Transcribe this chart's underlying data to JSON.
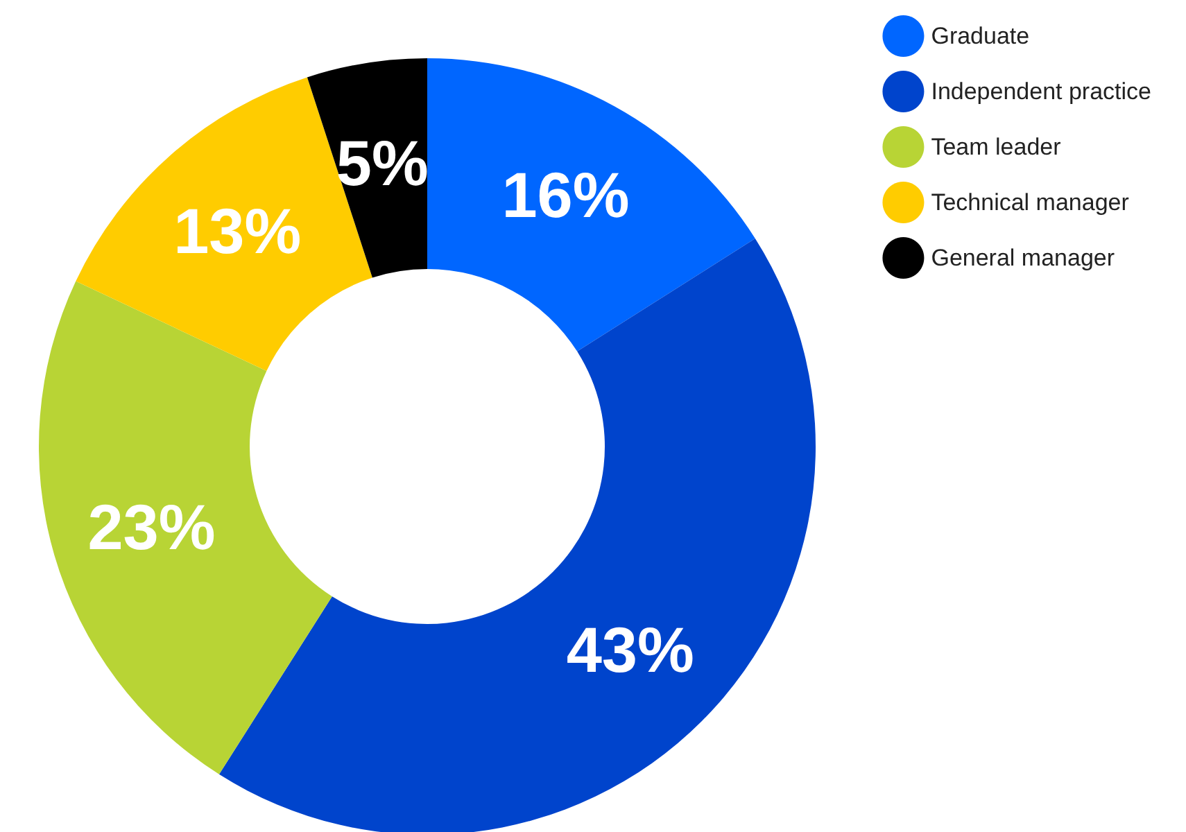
{
  "chart_data": {
    "type": "donut",
    "categories": [
      "Graduate",
      "Independent practice",
      "Team leader",
      "Technical manager",
      "General manager"
    ],
    "values": [
      16,
      43,
      23,
      13,
      5
    ],
    "colors": [
      "#0066ff",
      "#0044cc",
      "#b8d435",
      "#ffcc00",
      "#000000"
    ],
    "value_labels": [
      "16%",
      "43%",
      "23%",
      "13%",
      "5%"
    ],
    "legend": "top right"
  }
}
